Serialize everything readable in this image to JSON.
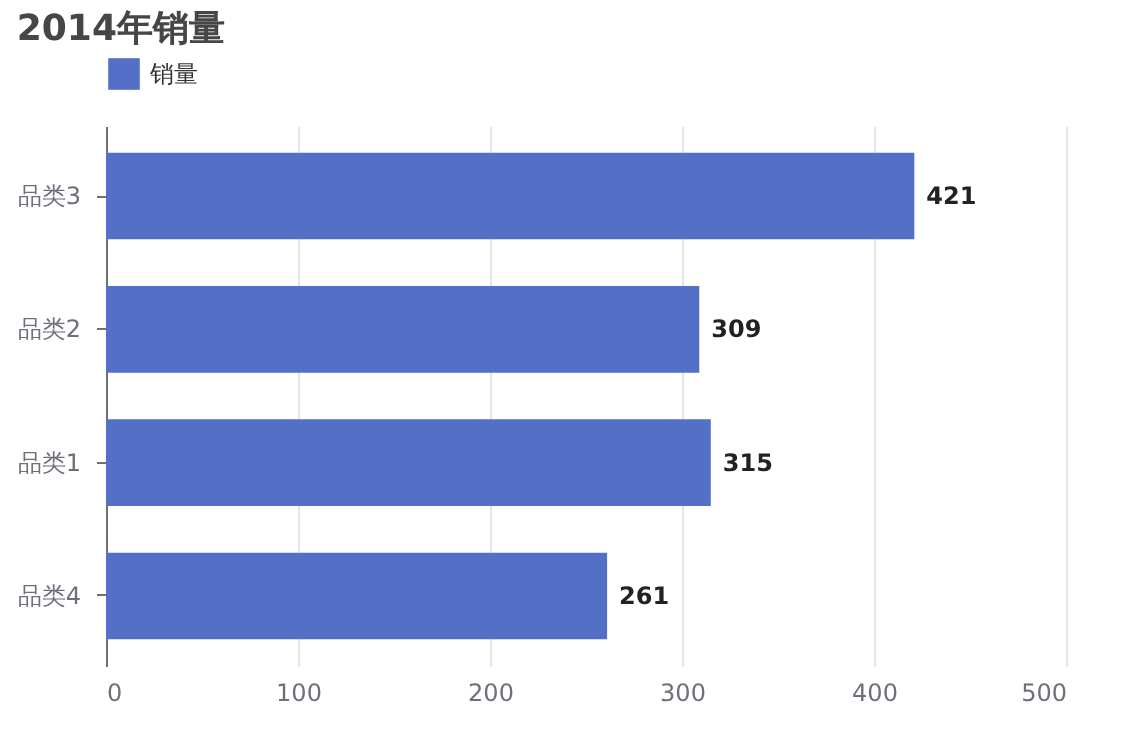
{
  "chart_data": {
    "type": "bar",
    "title": "2014年销量",
    "orientation": "horizontal",
    "categories": [
      "品类3",
      "品类2",
      "品类1",
      "品类4"
    ],
    "series": [
      {
        "name": "销量",
        "color": "#5470c6",
        "values": [
          421,
          309,
          315,
          261
        ]
      }
    ],
    "xlim": [
      0,
      500
    ],
    "xticks": [
      0,
      100,
      200,
      300,
      400,
      500
    ],
    "grid": "x",
    "legend": "top",
    "data_labels": true
  }
}
